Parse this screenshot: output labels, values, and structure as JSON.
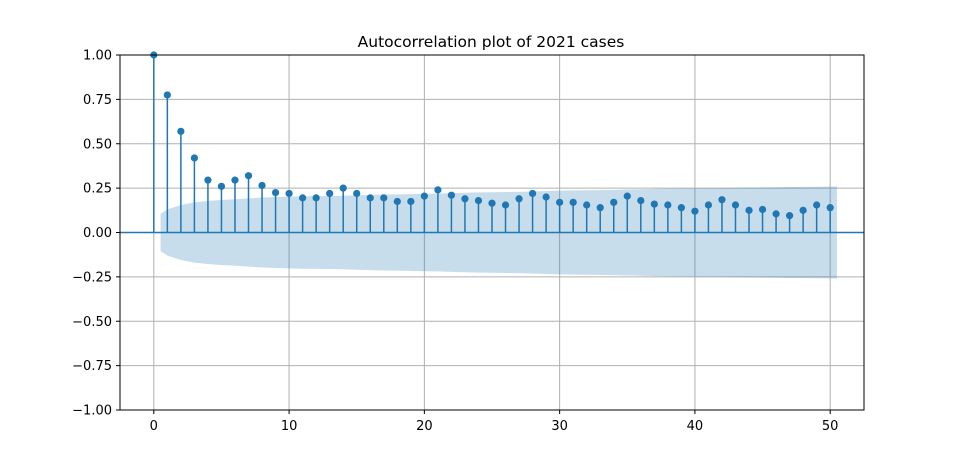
{
  "chart_data": {
    "type": "stem",
    "title": "Autocorrelation plot of 2021 cases",
    "xlabel": "",
    "ylabel": "",
    "xlim": [
      -2.5,
      52.5
    ],
    "ylim": [
      -1.0,
      1.0
    ],
    "x_ticks": [
      0,
      10,
      20,
      30,
      40,
      50
    ],
    "y_ticks": [
      -1.0,
      -0.75,
      -0.5,
      -0.25,
      0.0,
      0.25,
      0.5,
      0.75,
      1.0
    ],
    "x_tick_labels": [
      "0",
      "10",
      "20",
      "30",
      "40",
      "50"
    ],
    "y_tick_labels": [
      "−1.00",
      "−0.75",
      "−0.50",
      "−0.25",
      "0.00",
      "0.25",
      "0.50",
      "0.75",
      "1.00"
    ],
    "grid": true,
    "series": [
      {
        "lags": [
          0,
          1,
          2,
          3,
          4,
          5,
          6,
          7,
          8,
          9,
          10,
          11,
          12,
          13,
          14,
          15,
          16,
          17,
          18,
          19,
          20,
          21,
          22,
          23,
          24,
          25,
          26,
          27,
          28,
          29,
          30,
          31,
          32,
          33,
          34,
          35,
          36,
          37,
          38,
          39,
          40,
          41,
          42,
          43,
          44,
          45,
          46,
          47,
          48,
          49,
          50
        ],
        "values": [
          1.0,
          0.775,
          0.57,
          0.42,
          0.295,
          0.26,
          0.295,
          0.32,
          0.265,
          0.225,
          0.22,
          0.195,
          0.195,
          0.22,
          0.25,
          0.22,
          0.195,
          0.195,
          0.175,
          0.175,
          0.205,
          0.24,
          0.21,
          0.19,
          0.18,
          0.165,
          0.155,
          0.19,
          0.22,
          0.2,
          0.17,
          0.17,
          0.155,
          0.14,
          0.17,
          0.205,
          0.18,
          0.16,
          0.155,
          0.14,
          0.12,
          0.155,
          0.185,
          0.155,
          0.125,
          0.13,
          0.105,
          0.095,
          0.125,
          0.155,
          0.14
        ]
      }
    ],
    "confidence_band": {
      "lags": [
        0,
        1,
        2,
        3,
        4,
        5,
        6,
        7,
        8,
        9,
        10,
        11,
        12,
        13,
        14,
        15,
        16,
        17,
        18,
        19,
        20,
        21,
        22,
        23,
        24,
        25,
        26,
        27,
        28,
        29,
        30,
        31,
        32,
        33,
        34,
        35,
        36,
        37,
        38,
        39,
        40,
        41,
        42,
        43,
        44,
        45,
        46,
        47,
        48,
        49,
        50
      ],
      "upper": [
        0.105,
        0.13,
        0.155,
        0.17,
        0.178,
        0.183,
        0.187,
        0.192,
        0.197,
        0.2,
        0.202,
        0.204,
        0.205,
        0.206,
        0.207,
        0.21,
        0.212,
        0.214,
        0.215,
        0.216,
        0.218,
        0.219,
        0.222,
        0.224,
        0.226,
        0.227,
        0.228,
        0.229,
        0.231,
        0.234,
        0.236,
        0.237,
        0.238,
        0.239,
        0.24,
        0.242,
        0.244,
        0.246,
        0.247,
        0.248,
        0.249,
        0.25,
        0.251,
        0.252,
        0.253,
        0.254,
        0.255,
        0.256,
        0.257,
        0.258,
        0.259
      ]
    },
    "colors": {
      "stem": "#1f77b4",
      "marker": "#1f77b4",
      "zero_line": "#1f77b4",
      "band": "#1f77b4",
      "grid": "#b0b0b0",
      "axes": "#000000"
    }
  }
}
